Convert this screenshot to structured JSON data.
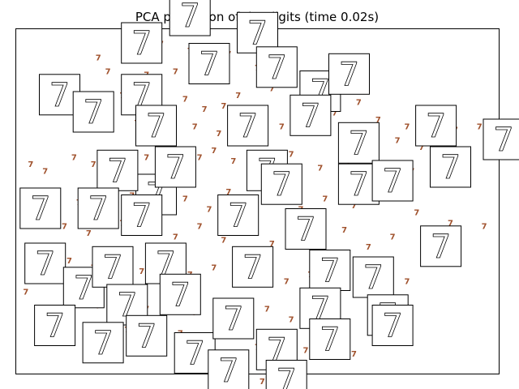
{
  "chart_data": {
    "type": "scatter",
    "title": "PCA projection of the digits (time 0.02s)",
    "xlabel": "",
    "ylabel": "",
    "xlim": [
      0,
      1
    ],
    "ylim": [
      0,
      1
    ],
    "grid": false,
    "axes_ticks": false,
    "marker": "text",
    "label_color": "#a0522d",
    "series": [
      {
        "label": "7",
        "points": [
          [
            0.17,
            0.91
          ],
          [
            0.24,
            0.94
          ],
          [
            0.3,
            0.95
          ],
          [
            0.36,
            0.93
          ],
          [
            0.44,
            0.92
          ],
          [
            0.5,
            0.88
          ],
          [
            0.57,
            0.86
          ],
          [
            0.61,
            0.85
          ],
          [
            0.19,
            0.87
          ],
          [
            0.27,
            0.86
          ],
          [
            0.33,
            0.87
          ],
          [
            0.41,
            0.84
          ],
          [
            0.46,
            0.8
          ],
          [
            0.53,
            0.82
          ],
          [
            0.64,
            0.82
          ],
          [
            0.71,
            0.78
          ],
          [
            0.22,
            0.8
          ],
          [
            0.29,
            0.78
          ],
          [
            0.35,
            0.79
          ],
          [
            0.39,
            0.76
          ],
          [
            0.43,
            0.77
          ],
          [
            0.49,
            0.74
          ],
          [
            0.58,
            0.77
          ],
          [
            0.66,
            0.75
          ],
          [
            0.75,
            0.73
          ],
          [
            0.81,
            0.71
          ],
          [
            0.86,
            0.72
          ],
          [
            0.91,
            0.7
          ],
          [
            0.96,
            0.71
          ],
          [
            0.18,
            0.7
          ],
          [
            0.25,
            0.72
          ],
          [
            0.31,
            0.7
          ],
          [
            0.37,
            0.71
          ],
          [
            0.42,
            0.69
          ],
          [
            0.47,
            0.7
          ],
          [
            0.55,
            0.71
          ],
          [
            0.61,
            0.7
          ],
          [
            0.68,
            0.68
          ],
          [
            0.73,
            0.66
          ],
          [
            0.79,
            0.67
          ],
          [
            0.84,
            0.65
          ],
          [
            0.88,
            0.66
          ],
          [
            0.06,
            0.58
          ],
          [
            0.12,
            0.62
          ],
          [
            0.16,
            0.6
          ],
          [
            0.21,
            0.61
          ],
          [
            0.27,
            0.62
          ],
          [
            0.33,
            0.64
          ],
          [
            0.38,
            0.62
          ],
          [
            0.41,
            0.64
          ],
          [
            0.45,
            0.61
          ],
          [
            0.52,
            0.6
          ],
          [
            0.57,
            0.63
          ],
          [
            0.63,
            0.59
          ],
          [
            0.69,
            0.61
          ],
          [
            0.74,
            0.57
          ],
          [
            0.82,
            0.58
          ],
          [
            0.87,
            0.55
          ],
          [
            0.93,
            0.56
          ],
          [
            0.08,
            0.52
          ],
          [
            0.13,
            0.49
          ],
          [
            0.19,
            0.53
          ],
          [
            0.24,
            0.51
          ],
          [
            0.3,
            0.48
          ],
          [
            0.35,
            0.5
          ],
          [
            0.4,
            0.47
          ],
          [
            0.44,
            0.52
          ],
          [
            0.49,
            0.49
          ],
          [
            0.54,
            0.51
          ],
          [
            0.59,
            0.47
          ],
          [
            0.64,
            0.5
          ],
          [
            0.7,
            0.48
          ],
          [
            0.77,
            0.51
          ],
          [
            0.83,
            0.46
          ],
          [
            0.9,
            0.43
          ],
          [
            0.97,
            0.42
          ],
          [
            0.1,
            0.42
          ],
          [
            0.15,
            0.4
          ],
          [
            0.22,
            0.43
          ],
          [
            0.28,
            0.41
          ],
          [
            0.33,
            0.39
          ],
          [
            0.38,
            0.42
          ],
          [
            0.43,
            0.38
          ],
          [
            0.48,
            0.41
          ],
          [
            0.53,
            0.37
          ],
          [
            0.58,
            0.4
          ],
          [
            0.63,
            0.38
          ],
          [
            0.68,
            0.41
          ],
          [
            0.73,
            0.36
          ],
          [
            0.78,
            0.39
          ],
          [
            0.85,
            0.35
          ],
          [
            0.02,
            0.23
          ],
          [
            0.11,
            0.32
          ],
          [
            0.16,
            0.3
          ],
          [
            0.21,
            0.33
          ],
          [
            0.26,
            0.29
          ],
          [
            0.31,
            0.31
          ],
          [
            0.36,
            0.28
          ],
          [
            0.41,
            0.3
          ],
          [
            0.46,
            0.27
          ],
          [
            0.51,
            0.29
          ],
          [
            0.56,
            0.26
          ],
          [
            0.61,
            0.28
          ],
          [
            0.66,
            0.25
          ],
          [
            0.71,
            0.27
          ],
          [
            0.76,
            0.24
          ],
          [
            0.81,
            0.26
          ],
          [
            0.12,
            0.21
          ],
          [
            0.17,
            0.19
          ],
          [
            0.22,
            0.22
          ],
          [
            0.27,
            0.18
          ],
          [
            0.32,
            0.2
          ],
          [
            0.37,
            0.17
          ],
          [
            0.42,
            0.19
          ],
          [
            0.47,
            0.16
          ],
          [
            0.52,
            0.18
          ],
          [
            0.57,
            0.15
          ],
          [
            0.62,
            0.17
          ],
          [
            0.67,
            0.14
          ],
          [
            0.74,
            0.16
          ],
          [
            0.18,
            0.1
          ],
          [
            0.23,
            0.12
          ],
          [
            0.29,
            0.09
          ],
          [
            0.34,
            0.11
          ],
          [
            0.39,
            0.08
          ],
          [
            0.44,
            0.1
          ],
          [
            0.5,
            0.07
          ],
          [
            0.55,
            0.09
          ],
          [
            0.6,
            0.06
          ],
          [
            0.65,
            0.08
          ],
          [
            0.7,
            0.05
          ],
          [
            0.51,
            -0.03
          ],
          [
            0.46,
            0.14
          ],
          [
            0.26,
            0.66
          ],
          [
            0.14,
            0.76
          ],
          [
            0.03,
            0.6
          ]
        ]
      }
    ],
    "thumbnails": [
      {
        "x": 0.36,
        "y": 1.04,
        "digit": "7"
      },
      {
        "x": 0.26,
        "y": 0.96,
        "digit": "7"
      },
      {
        "x": 0.5,
        "y": 0.99,
        "digit": "7"
      },
      {
        "x": 0.4,
        "y": 0.9,
        "digit": "7"
      },
      {
        "x": 0.54,
        "y": 0.89,
        "digit": "7"
      },
      {
        "x": 0.63,
        "y": 0.82,
        "digit": "7"
      },
      {
        "x": 0.69,
        "y": 0.87,
        "digit": "7"
      },
      {
        "x": 0.26,
        "y": 0.81,
        "digit": "7"
      },
      {
        "x": 0.09,
        "y": 0.81,
        "digit": "7"
      },
      {
        "x": 0.16,
        "y": 0.76,
        "digit": "7"
      },
      {
        "x": 0.29,
        "y": 0.72,
        "digit": "7"
      },
      {
        "x": 0.48,
        "y": 0.72,
        "digit": "7"
      },
      {
        "x": 0.52,
        "y": 0.59,
        "digit": "7"
      },
      {
        "x": 0.61,
        "y": 0.75,
        "digit": "7"
      },
      {
        "x": 0.71,
        "y": 0.67,
        "digit": "7"
      },
      {
        "x": 0.87,
        "y": 0.72,
        "digit": "7"
      },
      {
        "x": 1.01,
        "y": 0.68,
        "digit": "7"
      },
      {
        "x": 0.29,
        "y": 0.52,
        "digit": "7"
      },
      {
        "x": 0.21,
        "y": 0.59,
        "digit": "7"
      },
      {
        "x": 0.33,
        "y": 0.6,
        "digit": "7"
      },
      {
        "x": 0.55,
        "y": 0.55,
        "digit": "7"
      },
      {
        "x": 0.71,
        "y": 0.55,
        "digit": "7"
      },
      {
        "x": 0.78,
        "y": 0.56,
        "digit": "7"
      },
      {
        "x": 0.9,
        "y": 0.6,
        "digit": "7"
      },
      {
        "x": 0.05,
        "y": 0.48,
        "digit": "7"
      },
      {
        "x": 0.17,
        "y": 0.48,
        "digit": "7"
      },
      {
        "x": 0.26,
        "y": 0.46,
        "digit": "7"
      },
      {
        "x": 0.46,
        "y": 0.46,
        "digit": "7"
      },
      {
        "x": 0.6,
        "y": 0.42,
        "digit": "7"
      },
      {
        "x": 0.88,
        "y": 0.37,
        "digit": "7"
      },
      {
        "x": 0.06,
        "y": 0.32,
        "digit": "7"
      },
      {
        "x": 0.14,
        "y": 0.25,
        "digit": "7"
      },
      {
        "x": 0.2,
        "y": 0.31,
        "digit": "7"
      },
      {
        "x": 0.31,
        "y": 0.32,
        "digit": "7"
      },
      {
        "x": 0.49,
        "y": 0.31,
        "digit": "7"
      },
      {
        "x": 0.65,
        "y": 0.3,
        "digit": "7"
      },
      {
        "x": 0.74,
        "y": 0.28,
        "digit": "7"
      },
      {
        "x": 0.23,
        "y": 0.2,
        "digit": "7"
      },
      {
        "x": 0.34,
        "y": 0.23,
        "digit": "7"
      },
      {
        "x": 0.63,
        "y": 0.19,
        "digit": "7"
      },
      {
        "x": 0.77,
        "y": 0.17,
        "digit": "7"
      },
      {
        "x": 0.08,
        "y": 0.14,
        "digit": "7"
      },
      {
        "x": 0.18,
        "y": 0.09,
        "digit": "7"
      },
      {
        "x": 0.27,
        "y": 0.11,
        "digit": "7"
      },
      {
        "x": 0.37,
        "y": 0.06,
        "digit": "7"
      },
      {
        "x": 0.45,
        "y": 0.16,
        "digit": "7"
      },
      {
        "x": 0.54,
        "y": 0.07,
        "digit": "7"
      },
      {
        "x": 0.65,
        "y": 0.1,
        "digit": "7"
      },
      {
        "x": 0.44,
        "y": 0.01,
        "digit": "7"
      },
      {
        "x": 0.56,
        "y": -0.02,
        "digit": "7"
      },
      {
        "x": 0.78,
        "y": 0.14,
        "digit": "7"
      }
    ]
  }
}
